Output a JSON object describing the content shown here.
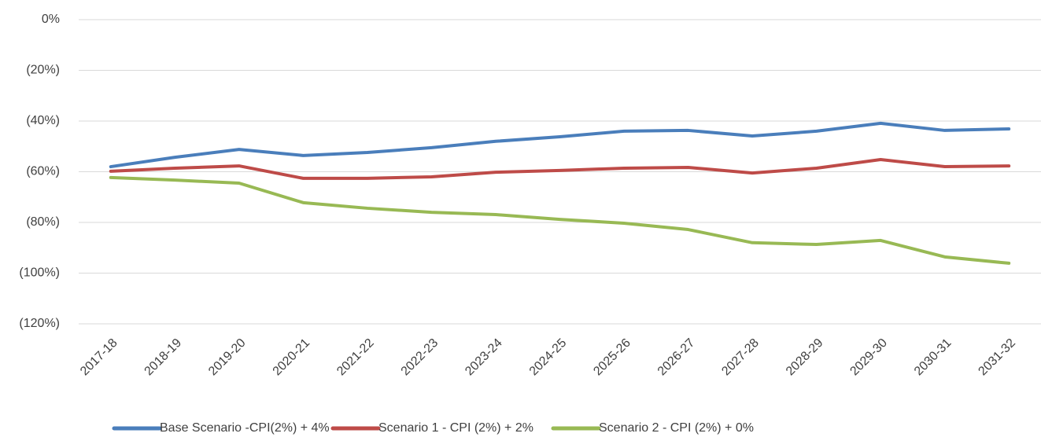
{
  "chart_data": {
    "type": "line",
    "categories": [
      "2017-18",
      "2018-19",
      "2019-20",
      "2020-21",
      "2021-22",
      "2022-23",
      "2023-24",
      "2024-25",
      "2025-26",
      "2026-27",
      "2027-28",
      "2028-29",
      "2029-30",
      "2030-31",
      "2031-32"
    ],
    "series": [
      {
        "name": "Base Scenario -CPI(2%) + 4%",
        "color": "#4a7ebb",
        "values": [
          -58,
          -54.3,
          -51.2,
          -53.6,
          -52.4,
          -50.5,
          -48,
          -46.2,
          -44,
          -43.7,
          -45.9,
          -44,
          -40.9,
          -43.7,
          -43.1
        ]
      },
      {
        "name": "Scenario 1 - CPI (2%) + 2%",
        "color": "#be4b48",
        "values": [
          -59.8,
          -58.6,
          -57.7,
          -62.6,
          -62.6,
          -62,
          -60.2,
          -59.5,
          -58.6,
          -58.3,
          -60.5,
          -58.6,
          -55.2,
          -58,
          -57.7
        ]
      },
      {
        "name": "Scenario 2 - CPI (2%) + 0%",
        "color": "#98b954",
        "values": [
          -62.3,
          -63.3,
          -64.5,
          -72.2,
          -74.4,
          -76,
          -76.9,
          -78.8,
          -80.3,
          -82.8,
          -88,
          -88.7,
          -87.1,
          -93.6,
          -96.1
        ]
      }
    ],
    "ylim": [
      -120,
      0
    ],
    "yticks": [
      {
        "value": 0,
        "label": "0%"
      },
      {
        "value": -20,
        "label": "(20%)"
      },
      {
        "value": -40,
        "label": "(40%)"
      },
      {
        "value": -60,
        "label": "(60%)"
      },
      {
        "value": -80,
        "label": "(80%)"
      },
      {
        "value": -100,
        "label": "(100%)"
      },
      {
        "value": -120,
        "label": "(120%)"
      }
    ],
    "grid": true,
    "legend": "bottom"
  }
}
